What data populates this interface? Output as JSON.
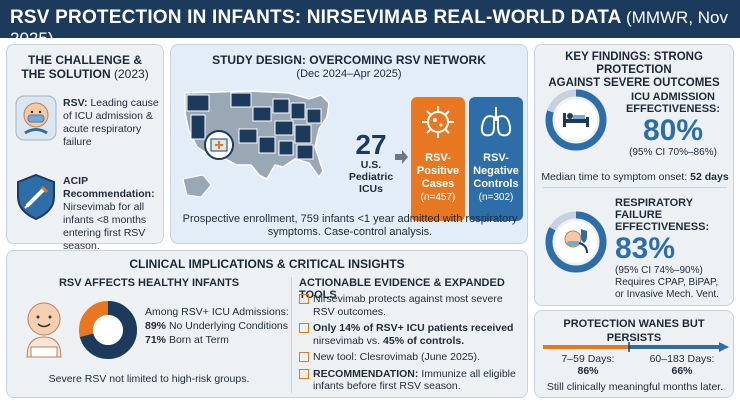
{
  "header": {
    "title": "RSV PROTECTION IN INFANTS: NIRSEVIMAB REAL-WORLD DATA",
    "source": "(MMWR, Nov 2025)"
  },
  "challenge": {
    "title": "THE CHALLENGE &",
    "title2": "THE SOLUTION",
    "year": "(2023)",
    "rsv_label": "RSV:",
    "rsv_text": "Leading cause of ICU admission & acute respiratory failure",
    "acip_label": "ACIP Recommendation:",
    "acip_text": "Nirsevimab for all infants <8 months entering first RSV season."
  },
  "study": {
    "title": "STUDY DESIGN: OVERCOMING RSV NETWORK",
    "dates": "(Dec 2024–Apr 2025)",
    "icu_count": "27",
    "icu_label1": "U.S.",
    "icu_label2": "Pediatric",
    "icu_label3": "ICUs",
    "pos_label1": "RSV-",
    "pos_label2": "Positive",
    "pos_label3": "Cases",
    "pos_n": "(n=457)",
    "neg_label1": "RSV-",
    "neg_label2": "Negative",
    "neg_label3": "Controls",
    "neg_n": "(n=302)",
    "desc1": "Prospective enrollment, 759 infants <1 year admitted with respiratory",
    "desc2": "symptoms. Case-control analysis."
  },
  "findings": {
    "title1": "KEY FINDINGS: STRONG PROTECTION",
    "title2": "AGAINST SEVERE OUTCOMES",
    "icu_h1": "ICU ADMISSION",
    "icu_h2": "EFFECTIVENESS:",
    "icu_pct": "80%",
    "icu_ci": "(95% CI 70%–86%)",
    "onset_label": "Median time to symptom onset:",
    "onset_value": "52 days",
    "rf_h1": "RESPIRATORY FAILURE",
    "rf_h2": "EFFECTIVENESS:",
    "rf_pct": "83%",
    "rf_ci": "(95% CI 74%–90%)",
    "rf_note1": "Requires CPAP, BiPAP,",
    "rf_note2": "or Invasive Mech. Vent.",
    "icu_level": 0.8,
    "rf_level": 0.83
  },
  "implications": {
    "title": "CLINICAL IMPLICATIONS & CRITICAL INSIGHTS",
    "healthy_title": "RSV AFFECTS HEALTHY INFANTS",
    "among": "Among RSV+ ICU Admissions:",
    "stat1_pct": "89%",
    "stat1_text": "No Underlying Conditions",
    "stat2_pct": "71%",
    "stat2_text": "Born at Term",
    "severe": "Severe RSV not limited to high-risk groups.",
    "donut_fraction": 0.71,
    "evidence_title": "ACTIONABLE EVIDENCE & EXPANDED TOOLS",
    "ev1": "Nirsevimab protects against most severe RSV outcomes.",
    "ev2_bold": "Only 14% of RSV+ ICU patients received",
    "ev2_rest": "nirsevimab vs.",
    "ev2_bold2": "45% of controls.",
    "ev3": "New tool: Clesrovimab (June 2025).",
    "ev4_bold": "RECOMMENDATION:",
    "ev4_rest": "Immunize all eligible infants before first RSV season."
  },
  "wanes": {
    "title": "PROTECTION WANES BUT PERSISTS",
    "p1_label": "7–59 Days:",
    "p1_value": "86%",
    "p2_label": "60–183 Days:",
    "p2_value": "66%",
    "note": "Still clinically meaningful months later."
  },
  "colors": {
    "navy": "#1b3a5c",
    "orange": "#e87722",
    "blue": "#2d6ea8",
    "panel": "#eef1f4"
  }
}
